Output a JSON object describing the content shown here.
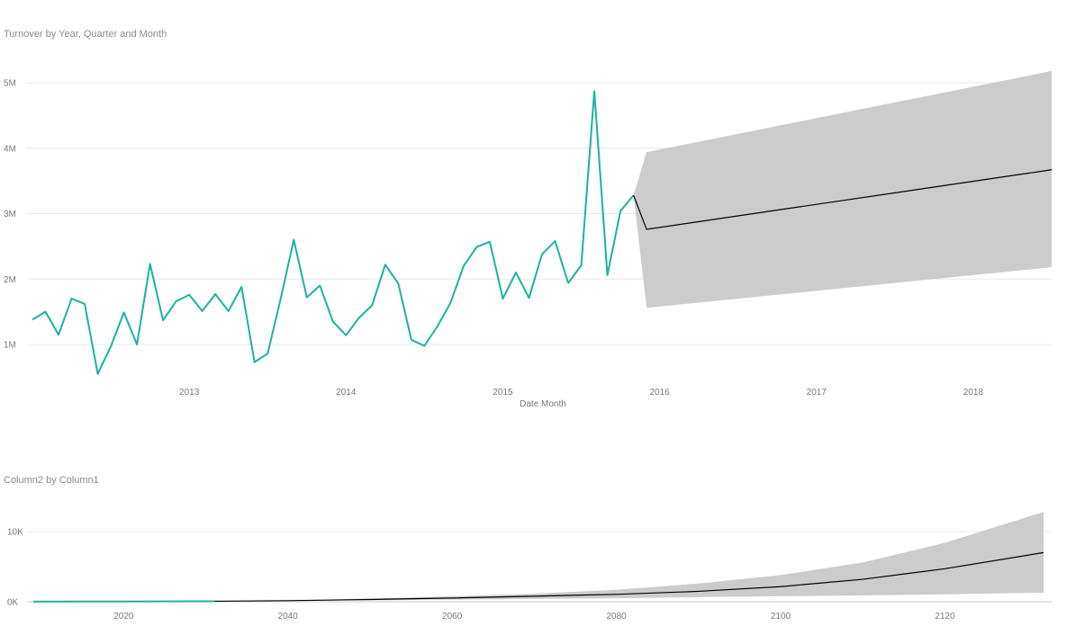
{
  "colors": {
    "actual_line": "#19b3a0",
    "forecast_line": "#000000",
    "confidence_band": "#cccccc",
    "gridline": "#e8e8e8",
    "text": "#777777"
  },
  "chart_data": [
    {
      "type": "line",
      "title": "Turnover by Year, Quarter and Month",
      "xlabel": "Date Month",
      "ylabel": "",
      "x_tick_labels": [
        "2013",
        "2014",
        "2015",
        "2016",
        "2017",
        "2018"
      ],
      "y_tick_labels": [
        "1M",
        "2M",
        "3M",
        "4M",
        "5M"
      ],
      "ylim": [
        0,
        5400000
      ],
      "xlim": [
        "2012-01",
        "2018-07"
      ],
      "grid": true,
      "series": [
        {
          "role": "actual",
          "x": [
            "2012-01",
            "2012-02",
            "2012-03",
            "2012-04",
            "2012-05",
            "2012-06",
            "2012-07",
            "2012-08",
            "2012-09",
            "2012-10",
            "2012-11",
            "2012-12",
            "2013-01",
            "2013-02",
            "2013-03",
            "2013-04",
            "2013-05",
            "2013-06",
            "2013-07",
            "2013-08",
            "2013-09",
            "2013-10",
            "2013-11",
            "2013-12",
            "2014-01",
            "2014-02",
            "2014-03",
            "2014-04",
            "2014-05",
            "2014-06",
            "2014-07",
            "2014-08",
            "2014-09",
            "2014-10",
            "2014-11",
            "2014-12",
            "2015-01",
            "2015-02",
            "2015-03",
            "2015-04",
            "2015-05",
            "2015-06",
            "2015-07",
            "2015-08",
            "2015-09",
            "2015-10",
            "2015-11",
            "2015-12"
          ],
          "values": [
            1380000,
            1500000,
            1150000,
            1700000,
            1620000,
            550000,
            970000,
            1490000,
            1000000,
            2230000,
            1370000,
            1660000,
            1760000,
            1510000,
            1770000,
            1510000,
            1880000,
            730000,
            860000,
            1700000,
            2600000,
            1720000,
            1900000,
            1350000,
            1140000,
            1410000,
            1600000,
            2220000,
            1930000,
            1070000,
            980000,
            1280000,
            1640000,
            2200000,
            2490000,
            2570000,
            1700000,
            2100000,
            1710000,
            2380000,
            2580000,
            1940000,
            2210000,
            4870000,
            2060000,
            3040000,
            3280000,
            2760000
          ]
        },
        {
          "role": "forecast",
          "x": [
            "2015-12",
            "2018-07"
          ],
          "values": [
            2760000,
            3670000
          ],
          "lower": [
            1560000,
            2180000
          ],
          "upper": [
            3940000,
            5180000
          ]
        }
      ]
    },
    {
      "type": "line",
      "title": "Column2 by Column1",
      "xlabel": "",
      "ylabel": "",
      "x_tick_labels": [
        "2020",
        "2040",
        "2060",
        "2080",
        "2100",
        "2120"
      ],
      "y_tick_labels": [
        "0K",
        "10K"
      ],
      "xlim": [
        2009,
        2133
      ],
      "ylim": [
        0,
        13000
      ],
      "grid": true,
      "series": [
        {
          "role": "actual",
          "x": [
            2009,
            2015,
            2020,
            2025,
            2031
          ],
          "values": [
            20,
            25,
            40,
            55,
            70
          ]
        },
        {
          "role": "forecast",
          "x": [
            2031,
            2040,
            2050,
            2060,
            2070,
            2080,
            2090,
            2100,
            2110,
            2120,
            2132
          ],
          "values": [
            70,
            150,
            320,
            530,
            790,
            1050,
            1480,
            2150,
            3200,
            4700,
            7000
          ],
          "lower": [
            60,
            110,
            200,
            300,
            400,
            500,
            650,
            780,
            900,
            1050,
            1300
          ],
          "upper": [
            80,
            200,
            450,
            750,
            1150,
            1700,
            2600,
            3800,
            5600,
            8400,
            12800
          ]
        }
      ]
    }
  ]
}
